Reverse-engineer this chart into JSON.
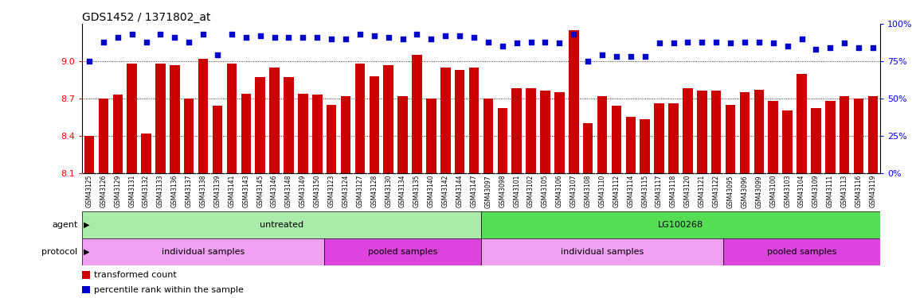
{
  "title": "GDS1452 / 1371802_at",
  "samples": [
    "GSM43125",
    "GSM43126",
    "GSM43129",
    "GSM43131",
    "GSM43132",
    "GSM43133",
    "GSM43136",
    "GSM43137",
    "GSM43138",
    "GSM43139",
    "GSM43141",
    "GSM43143",
    "GSM43145",
    "GSM43146",
    "GSM43148",
    "GSM43149",
    "GSM43150",
    "GSM43123",
    "GSM43124",
    "GSM43127",
    "GSM43128",
    "GSM43130",
    "GSM43134",
    "GSM43135",
    "GSM43140",
    "GSM43142",
    "GSM43144",
    "GSM43147",
    "GSM43097",
    "GSM43098",
    "GSM43101",
    "GSM43102",
    "GSM43105",
    "GSM43106",
    "GSM43107",
    "GSM43108",
    "GSM43110",
    "GSM43112",
    "GSM43114",
    "GSM43115",
    "GSM43117",
    "GSM43118",
    "GSM43120",
    "GSM43121",
    "GSM43122",
    "GSM43095",
    "GSM43096",
    "GSM43099",
    "GSM43100",
    "GSM43103",
    "GSM43104",
    "GSM43109",
    "GSM43111",
    "GSM43113",
    "GSM43116",
    "GSM43119"
  ],
  "bar_values": [
    8.4,
    8.7,
    8.73,
    8.98,
    8.42,
    8.98,
    8.97,
    8.7,
    9.02,
    8.64,
    8.98,
    8.74,
    8.87,
    8.95,
    8.87,
    8.74,
    8.73,
    8.65,
    8.72,
    8.98,
    8.88,
    8.97,
    8.72,
    9.05,
    8.7,
    8.95,
    8.93,
    8.95,
    8.7,
    8.62,
    8.78,
    8.78,
    8.76,
    8.75,
    9.25,
    8.5,
    8.72,
    8.64,
    8.55,
    8.53,
    8.66,
    8.66,
    8.78,
    8.76,
    8.76,
    8.65,
    8.75,
    8.77,
    8.68,
    8.6,
    8.9,
    8.62,
    8.68,
    8.72,
    8.7,
    8.72
  ],
  "percentile_values": [
    75,
    88,
    91,
    93,
    88,
    93,
    91,
    88,
    93,
    79,
    93,
    91,
    92,
    91,
    91,
    91,
    91,
    90,
    90,
    93,
    92,
    91,
    90,
    93,
    90,
    92,
    92,
    91,
    88,
    85,
    87,
    88,
    88,
    87,
    93,
    75,
    79,
    78,
    78,
    78,
    87,
    87,
    88,
    88,
    88,
    87,
    88,
    88,
    87,
    85,
    90,
    83,
    84,
    87,
    84,
    84
  ],
  "ymin": 8.1,
  "ymax": 9.3,
  "y_ticks": [
    8.1,
    8.4,
    8.7,
    9.0
  ],
  "y2min": 0,
  "y2max": 100,
  "y2_ticks": [
    0,
    25,
    50,
    75,
    100
  ],
  "bar_color": "#CC0000",
  "dot_color": "#0000CC",
  "agent_groups": [
    {
      "label": "untreated",
      "start": 0,
      "end": 27,
      "color": "#AAEAAA"
    },
    {
      "label": "LG100268",
      "start": 28,
      "end": 55,
      "color": "#55DD55"
    }
  ],
  "protocol_groups": [
    {
      "label": "individual samples",
      "start": 0,
      "end": 16,
      "color": "#F0A0F0"
    },
    {
      "label": "pooled samples",
      "start": 17,
      "end": 27,
      "color": "#DD44DD"
    },
    {
      "label": "individual samples",
      "start": 28,
      "end": 44,
      "color": "#F0A0F0"
    },
    {
      "label": "pooled samples",
      "start": 45,
      "end": 55,
      "color": "#DD44DD"
    }
  ],
  "bg_color": "#FFFFFF",
  "plot_bg_color": "#FFFFFF",
  "xtick_bg_color": "#DDDDDD",
  "legend_items": [
    {
      "label": "transformed count",
      "color": "#CC0000"
    },
    {
      "label": "percentile rank within the sample",
      "color": "#0000CC"
    }
  ]
}
